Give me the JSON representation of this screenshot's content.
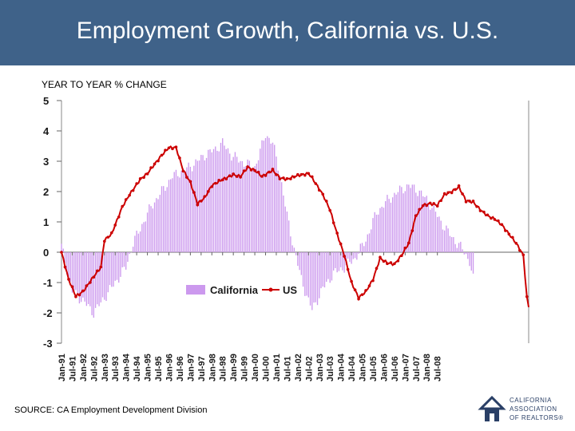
{
  "header": {
    "title": "Employment Growth, California vs. U.S."
  },
  "source": "SOURCE: CA Employment Development Division",
  "logo": {
    "line1": "CALIFORNIA",
    "line2": "ASSOCIATION",
    "line3": "OF REALTORS®"
  },
  "colors": {
    "header": "#3f6289",
    "california": "#cc99ee",
    "us": "#cc0000"
  },
  "chart_data": {
    "type": "bar+line",
    "title": "",
    "ylabel": "YEAR TO YEAR % CHANGE",
    "ylim": [
      -3,
      5
    ],
    "yticks": [
      5,
      4,
      3,
      2,
      1,
      0,
      -1,
      -2,
      -3
    ],
    "x_tick_labels": [
      "Jan-91",
      "Jul-91",
      "Jan-92",
      "Jul-92",
      "Jan-93",
      "Jul-93",
      "Jan-94",
      "Jul-94",
      "Jan-95",
      "Jul-95",
      "Jan-96",
      "Jul-96",
      "Jan-97",
      "Jul-97",
      "Jan-98",
      "Jul-98",
      "Jan-99",
      "Jul-99",
      "Jan-00",
      "Jul-00",
      "Jan-01",
      "Jul-01",
      "Jan-02",
      "Jul-02",
      "Jan-03",
      "Jul-03",
      "Jan-04",
      "Jul-04",
      "Jan-05",
      "Jul-05",
      "Jan-06",
      "Jul-06",
      "Jan-07",
      "Jul-07",
      "Jan-08",
      "Jul-08"
    ],
    "legend": {
      "position": "center",
      "items": [
        "California",
        "US"
      ]
    },
    "series": [
      {
        "name": "California",
        "type": "bar",
        "anchors": [
          [
            0,
            0.2
          ],
          [
            6,
            -1.3
          ],
          [
            12,
            -1.6
          ],
          [
            18,
            -2.0
          ],
          [
            24,
            -1.5
          ],
          [
            30,
            -1.0
          ],
          [
            36,
            -0.5
          ],
          [
            40,
            0.3
          ],
          [
            45,
            0.9
          ],
          [
            50,
            1.5
          ],
          [
            56,
            2.0
          ],
          [
            62,
            2.5
          ],
          [
            68,
            2.7
          ],
          [
            74,
            2.9
          ],
          [
            80,
            3.2
          ],
          [
            86,
            3.4
          ],
          [
            90,
            3.6
          ],
          [
            95,
            3.2
          ],
          [
            100,
            3.0
          ],
          [
            108,
            2.8
          ],
          [
            112,
            3.5
          ],
          [
            114,
            3.9
          ],
          [
            118,
            3.6
          ],
          [
            122,
            2.6
          ],
          [
            126,
            1.2
          ],
          [
            130,
            0.1
          ],
          [
            134,
            -0.9
          ],
          [
            138,
            -1.6
          ],
          [
            140,
            -1.9
          ],
          [
            146,
            -1.2
          ],
          [
            152,
            -0.7
          ],
          [
            158,
            -0.5
          ],
          [
            164,
            -0.2
          ],
          [
            170,
            0.4
          ],
          [
            176,
            1.3
          ],
          [
            182,
            1.7
          ],
          [
            188,
            2.0
          ],
          [
            194,
            2.2
          ],
          [
            200,
            2.0
          ],
          [
            206,
            1.6
          ],
          [
            212,
            1.0
          ],
          [
            218,
            0.5
          ],
          [
            224,
            0.1
          ],
          [
            228,
            -0.3
          ],
          [
            230,
            -0.9
          ]
        ]
      },
      {
        "name": "US",
        "type": "line",
        "anchors": [
          [
            0,
            0.0
          ],
          [
            4,
            -0.9
          ],
          [
            8,
            -1.45
          ],
          [
            12,
            -1.3
          ],
          [
            18,
            -0.8
          ],
          [
            22,
            -0.5
          ],
          [
            24,
            0.4
          ],
          [
            28,
            0.6
          ],
          [
            34,
            1.5
          ],
          [
            38,
            1.9
          ],
          [
            44,
            2.4
          ],
          [
            48,
            2.6
          ],
          [
            52,
            2.9
          ],
          [
            56,
            3.2
          ],
          [
            60,
            3.45
          ],
          [
            64,
            3.45
          ],
          [
            68,
            2.7
          ],
          [
            72,
            2.3
          ],
          [
            76,
            1.6
          ],
          [
            80,
            1.8
          ],
          [
            84,
            2.2
          ],
          [
            90,
            2.4
          ],
          [
            96,
            2.55
          ],
          [
            100,
            2.5
          ],
          [
            104,
            2.8
          ],
          [
            108,
            2.7
          ],
          [
            112,
            2.5
          ],
          [
            118,
            2.7
          ],
          [
            122,
            2.45
          ],
          [
            126,
            2.4
          ],
          [
            130,
            2.5
          ],
          [
            134,
            2.55
          ],
          [
            138,
            2.6
          ],
          [
            140,
            2.45
          ],
          [
            146,
            1.9
          ],
          [
            150,
            1.4
          ],
          [
            154,
            0.6
          ],
          [
            158,
            -0.1
          ],
          [
            162,
            -1.0
          ],
          [
            166,
            -1.5
          ],
          [
            170,
            -1.3
          ],
          [
            174,
            -0.9
          ],
          [
            178,
            -0.2
          ],
          [
            182,
            -0.35
          ],
          [
            186,
            -0.4
          ],
          [
            190,
            -0.1
          ],
          [
            194,
            0.3
          ],
          [
            198,
            1.2
          ],
          [
            202,
            1.55
          ],
          [
            206,
            1.6
          ],
          [
            210,
            1.55
          ],
          [
            214,
            1.9
          ],
          [
            218,
            2.0
          ],
          [
            222,
            2.15
          ],
          [
            226,
            1.7
          ],
          [
            230,
            1.65
          ],
          [
            234,
            1.4
          ],
          [
            238,
            1.2
          ],
          [
            242,
            1.1
          ],
          [
            246,
            0.9
          ],
          [
            250,
            0.6
          ],
          [
            254,
            0.3
          ],
          [
            258,
            -0.1
          ],
          [
            260,
            -1.5
          ],
          [
            261,
            -1.8
          ]
        ]
      }
    ]
  }
}
